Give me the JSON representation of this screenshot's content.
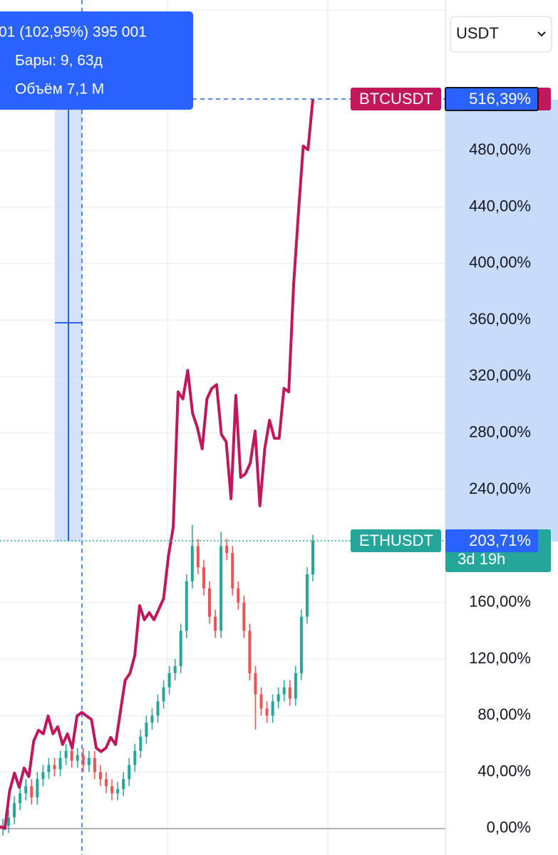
{
  "chart_data": {
    "type": "compare",
    "ylim": [
      -18.7,
      586.5
    ],
    "yticks": [
      {
        "value": 0,
        "label": "0,00%"
      },
      {
        "value": 40,
        "label": "40,00%"
      },
      {
        "value": 80,
        "label": "80,00%"
      },
      {
        "value": 120,
        "label": "120,00%"
      },
      {
        "value": 160,
        "label": "160,00%"
      },
      {
        "value": 240,
        "label": "240,00%"
      },
      {
        "value": 280,
        "label": "280,00%"
      },
      {
        "value": 320,
        "label": "320,00%"
      },
      {
        "value": 360,
        "label": "360,00%"
      },
      {
        "value": 400,
        "label": "400,00%"
      },
      {
        "value": 440,
        "label": "440,00%"
      },
      {
        "value": 480,
        "label": "480,00%"
      }
    ],
    "grid": true,
    "series": [
      {
        "name": "BTCUSDT",
        "type": "line",
        "color": "#c2185b",
        "last_label": "516,39%",
        "values": [
          1.5,
          0,
          26.7,
          39.3,
          29.2,
          42.9,
          36.8,
          62.0,
          69.6,
          67.1,
          79.7,
          67.1,
          72.1,
          59.5,
          67.1,
          57.0,
          79.7,
          82.2,
          79.7,
          77.2,
          57.0,
          54.5,
          57.0,
          64.5,
          59.5,
          82.2,
          104.9,
          109.9,
          122.5,
          157.8,
          147.8,
          152.8,
          147.8,
          155.3,
          162.9,
          193.1,
          213.3,
          309.1,
          304.1,
          324.3,
          294.0,
          283.9,
          268.8,
          304.1,
          311.6,
          314.2,
          278.9,
          273.8,
          233.5,
          306.6,
          248.6,
          251.1,
          258.7,
          281.4,
          228.4,
          268.8,
          289.0,
          276.3,
          276.3,
          311.6,
          309.1,
          384.8,
          435.2,
          483.1,
          480.6,
          516.39
        ]
      },
      {
        "name": "ETHUSDT",
        "type": "candlestick",
        "up_color": "#26a69a",
        "down_color": "#ef5350",
        "last_label": "203,71%",
        "countdown": "3d 19h",
        "open": [
          0,
          2,
          8,
          18,
          25,
          30,
          22,
          35,
          40,
          45,
          42,
          50,
          55,
          48,
          52,
          45,
          50,
          40,
          35,
          30,
          25,
          28,
          35,
          45,
          55,
          65,
          75,
          80,
          90,
          100,
          110,
          115,
          140,
          175,
          200,
          185,
          170,
          150,
          140,
          200,
          195,
          170,
          160,
          140,
          110,
          95,
          85,
          80,
          90,
          95,
          100,
          92,
          110,
          150,
          180
        ],
        "high": [
          7,
          13,
          23,
          30,
          35,
          35,
          40,
          45,
          50,
          50,
          55,
          60,
          60,
          57,
          57,
          55,
          55,
          45,
          40,
          35,
          33,
          40,
          50,
          60,
          70,
          80,
          85,
          95,
          105,
          115,
          120,
          145,
          180,
          215,
          205,
          190,
          175,
          155,
          210,
          205,
          200,
          175,
          165,
          145,
          115,
          100,
          90,
          95,
          100,
          105,
          105,
          115,
          155,
          185,
          208
        ],
        "low": [
          -5,
          -3,
          3,
          13,
          20,
          17,
          17,
          30,
          35,
          37,
          37,
          45,
          43,
          43,
          40,
          40,
          35,
          30,
          25,
          20,
          20,
          23,
          30,
          40,
          50,
          60,
          70,
          75,
          85,
          95,
          105,
          110,
          135,
          170,
          180,
          165,
          145,
          135,
          135,
          190,
          165,
          155,
          135,
          105,
          70,
          80,
          75,
          75,
          85,
          90,
          87,
          87,
          105,
          145,
          175
        ],
        "close": [
          2,
          8,
          18,
          25,
          30,
          22,
          35,
          40,
          45,
          42,
          50,
          55,
          48,
          52,
          45,
          50,
          40,
          35,
          30,
          25,
          28,
          35,
          45,
          55,
          65,
          75,
          80,
          90,
          100,
          110,
          115,
          140,
          175,
          200,
          185,
          170,
          150,
          140,
          200,
          195,
          170,
          160,
          140,
          110,
          95,
          85,
          80,
          90,
          95,
          100,
          92,
          110,
          150,
          180,
          203.71
        ]
      }
    ]
  },
  "ui": {
    "tooltip": [
      "01 (102,95%) 395 001",
      "Бары: 9, 63д",
      "Объём 7,1 M"
    ],
    "currency": "USDT"
  }
}
